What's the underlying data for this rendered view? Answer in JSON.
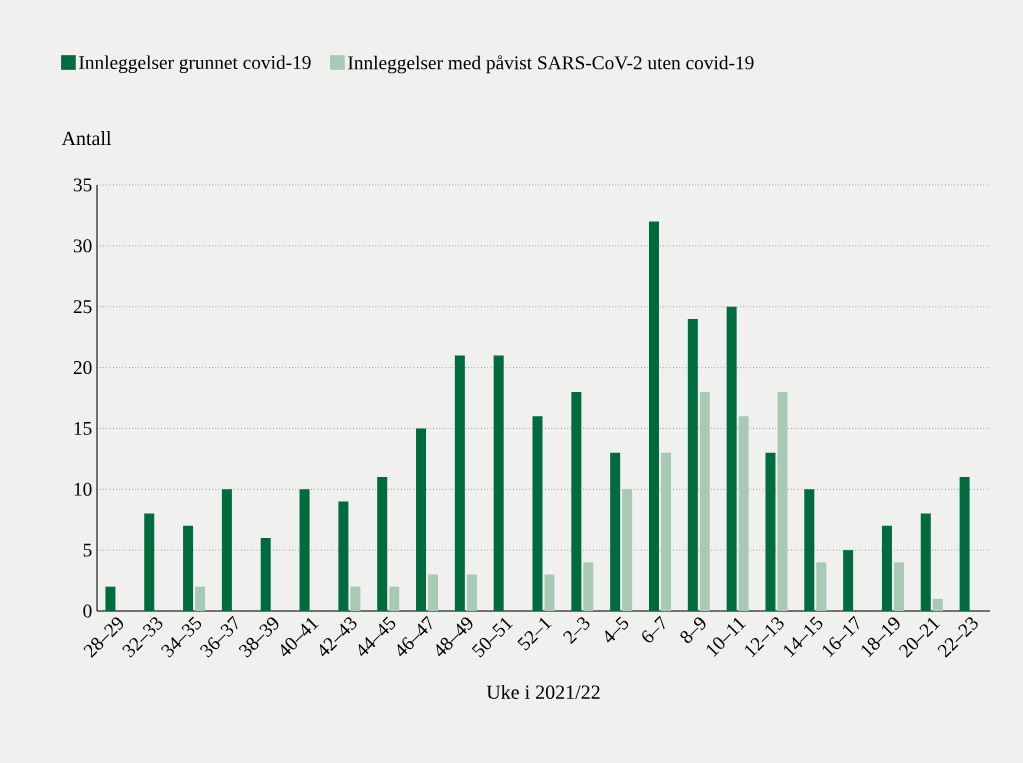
{
  "chart_data": {
    "type": "bar",
    "xlabel": "Uke i 2021/22",
    "ylabel": "Antall",
    "categories": [
      "28–29",
      "32–33",
      "34–35",
      "36–37",
      "38–39",
      "40–41",
      "42–43",
      "44–45",
      "46–47",
      "48–49",
      "50–51",
      "52–1",
      "2–3",
      "4–5",
      "6–7",
      "8–9",
      "10–11",
      "12–13",
      "14–15",
      "16–17",
      "18–19",
      "20–21",
      "22–23"
    ],
    "series": [
      {
        "name": "Innleggelser grunnet covid-19",
        "color": "#006b3c",
        "values": [
          2,
          8,
          7,
          10,
          6,
          10,
          9,
          11,
          15,
          21,
          21,
          16,
          18,
          13,
          32,
          24,
          25,
          13,
          10,
          5,
          7,
          8,
          11
        ]
      },
      {
        "name": "Innleggelser med påvist SARS-CoV-2 uten covid-19",
        "color": "#a8c9b4",
        "values": [
          null,
          null,
          2,
          null,
          null,
          null,
          2,
          2,
          3,
          3,
          null,
          3,
          4,
          10,
          13,
          18,
          16,
          18,
          4,
          null,
          4,
          1,
          null
        ]
      }
    ],
    "ylim": [
      0,
      35
    ],
    "yticks": [
      0,
      5,
      10,
      15,
      20,
      25,
      30,
      35
    ],
    "grid": "y",
    "legend": "top"
  }
}
